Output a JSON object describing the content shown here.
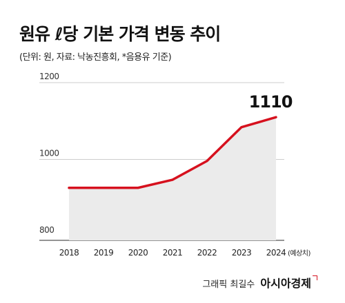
{
  "header": {
    "title": "원유 ℓ당 기본 가격 변동 추이",
    "subtitle": "(단위: 원, 자료: 낙농진흥회, *음용유 기준)"
  },
  "footer": {
    "credit_label": "그래픽 최길수",
    "brand": "아시아경제"
  },
  "chart_data": {
    "type": "area",
    "title": "원유 ℓ당 기본 가격 변동 추이",
    "subtitle": "(단위: 원, 자료: 낙농진흥회, *음용유 기준)",
    "categories": [
      "2018",
      "2019",
      "2020",
      "2021",
      "2022",
      "2023",
      "2024"
    ],
    "category_suffix": [
      "",
      "",
      "",
      "",
      "",
      "",
      "(예상치)"
    ],
    "values": [
      926,
      926,
      926,
      947,
      996,
      1084,
      1110
    ],
    "yticks": [
      800,
      1000,
      1200
    ],
    "ylim": [
      800,
      1200
    ],
    "highlight_label": "1110",
    "colors": {
      "line": "#d6111e",
      "fill": "#ebebeb",
      "axis": "#555555",
      "grid": "#bbbbbb"
    }
  }
}
